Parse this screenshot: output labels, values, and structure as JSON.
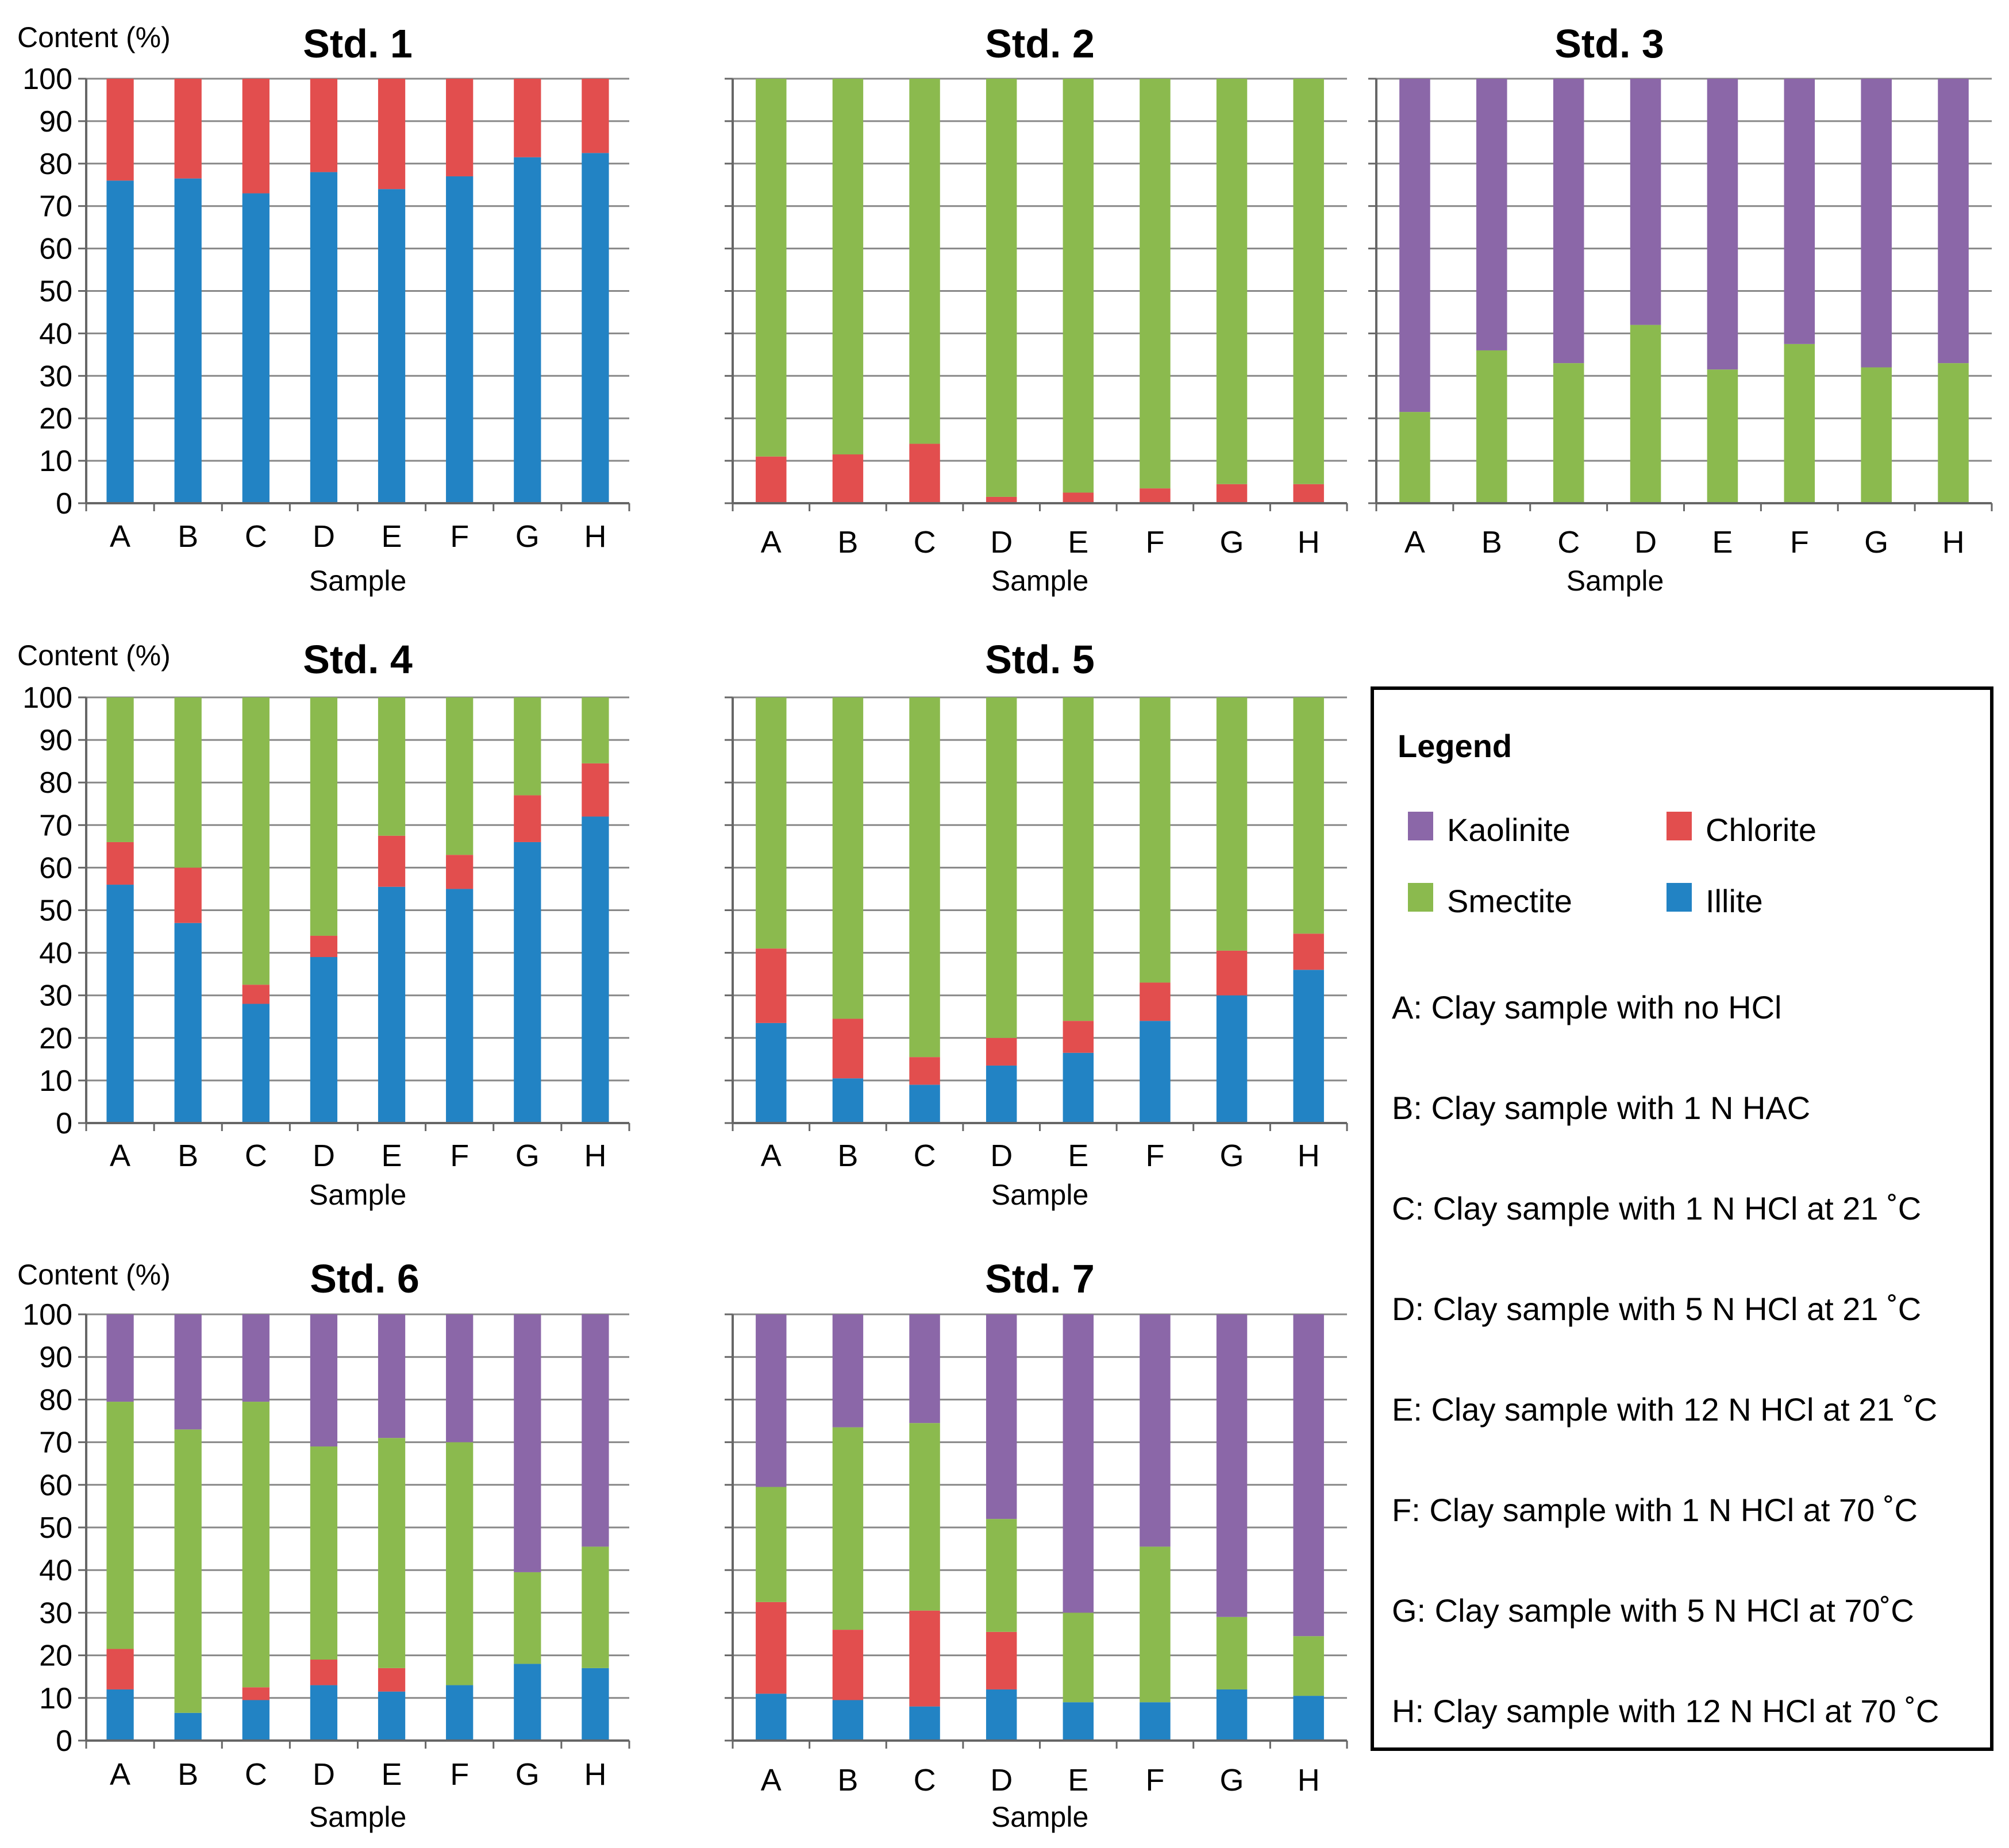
{
  "figure": {
    "colors": {
      "Kaolinite": "#8b67a8",
      "Chlorite": "#e24e4e",
      "Smectite": "#8bba4e",
      "Illite": "#2283c4",
      "grid": "#888888",
      "axis": "#666666"
    }
  },
  "chart_data": [
    {
      "type": "bar",
      "stacked": true,
      "title": "Std. 1",
      "xlabel": "Sample",
      "ylabel": "Content (%)",
      "ylim": [
        0,
        100
      ],
      "yticks": [
        "0",
        "10",
        "20",
        "30",
        "40",
        "50",
        "60",
        "70",
        "80",
        "90",
        "100"
      ],
      "categories": [
        "A",
        "B",
        "C",
        "D",
        "E",
        "F",
        "G",
        "H"
      ],
      "series": [
        {
          "name": "Illite",
          "values": [
            76,
            76.5,
            73,
            78,
            74,
            77,
            81.5,
            82.5
          ]
        },
        {
          "name": "Chlorite",
          "values": [
            24,
            23.5,
            27,
            22,
            26,
            23,
            18.5,
            17.5
          ]
        }
      ]
    },
    {
      "type": "bar",
      "stacked": true,
      "title": "Std. 2",
      "xlabel": "Sample",
      "categories": [
        "A",
        "B",
        "C",
        "D",
        "E",
        "F",
        "G",
        "H"
      ],
      "ylim": [
        0,
        100
      ],
      "series": [
        {
          "name": "Chlorite",
          "values": [
            11,
            11.5,
            14,
            1.5,
            2.5,
            3.5,
            4.5,
            4.5
          ]
        },
        {
          "name": "Smectite",
          "values": [
            89,
            88.5,
            86,
            98.5,
            97.5,
            96.5,
            95.5,
            95.5
          ]
        }
      ]
    },
    {
      "type": "bar",
      "stacked": true,
      "title": "Std. 3",
      "xlabel": "Sample",
      "categories": [
        "A",
        "B",
        "C",
        "D",
        "E",
        "F",
        "G",
        "H"
      ],
      "ylim": [
        0,
        100
      ],
      "series": [
        {
          "name": "Smectite",
          "values": [
            21.5,
            36,
            33,
            42,
            31.5,
            37.5,
            32,
            33
          ]
        },
        {
          "name": "Kaolinite",
          "values": [
            78.5,
            64,
            67,
            58,
            68.5,
            62.5,
            68,
            67
          ]
        }
      ]
    },
    {
      "type": "bar",
      "stacked": true,
      "title": "Std. 4",
      "xlabel": "Sample",
      "ylabel": "Content (%)",
      "ylim": [
        0,
        100
      ],
      "yticks": [
        "0",
        "10",
        "20",
        "30",
        "40",
        "50",
        "60",
        "70",
        "80",
        "90",
        "100"
      ],
      "categories": [
        "A",
        "B",
        "C",
        "D",
        "E",
        "F",
        "G",
        "H"
      ],
      "series": [
        {
          "name": "Illite",
          "values": [
            56,
            47,
            28,
            39,
            55.5,
            55,
            66,
            72
          ]
        },
        {
          "name": "Chlorite",
          "values": [
            10,
            13,
            4.5,
            5,
            12,
            8,
            11,
            12.5
          ]
        },
        {
          "name": "Smectite",
          "values": [
            34,
            40,
            67.5,
            56,
            32.5,
            37,
            23,
            15.5
          ]
        }
      ]
    },
    {
      "type": "bar",
      "stacked": true,
      "title": "Std. 5",
      "xlabel": "Sample",
      "categories": [
        "A",
        "B",
        "C",
        "D",
        "E",
        "F",
        "G",
        "H"
      ],
      "ylim": [
        0,
        100
      ],
      "series": [
        {
          "name": "Illite",
          "values": [
            23.5,
            10.5,
            9,
            13.5,
            16.5,
            24,
            30,
            36
          ]
        },
        {
          "name": "Chlorite",
          "values": [
            17.5,
            14,
            6.5,
            6.5,
            7.5,
            9,
            10.5,
            8.5
          ]
        },
        {
          "name": "Smectite",
          "values": [
            59,
            75.5,
            84.5,
            80,
            76,
            67,
            59.5,
            55.5
          ]
        }
      ]
    },
    {
      "type": "bar",
      "stacked": true,
      "title": "Std. 6",
      "xlabel": "Sample",
      "ylabel": "Content (%)",
      "ylim": [
        0,
        100
      ],
      "yticks": [
        "0",
        "10",
        "20",
        "30",
        "40",
        "50",
        "60",
        "70",
        "80",
        "90",
        "100"
      ],
      "categories": [
        "A",
        "B",
        "C",
        "D",
        "E",
        "F",
        "G",
        "H"
      ],
      "series": [
        {
          "name": "Illite",
          "values": [
            12,
            6.5,
            9.5,
            13,
            11.5,
            13,
            18,
            17
          ]
        },
        {
          "name": "Chlorite",
          "values": [
            9.5,
            0,
            3,
            6,
            5.5,
            0,
            0,
            0
          ]
        },
        {
          "name": "Smectite",
          "values": [
            58,
            66.5,
            67,
            50,
            54,
            57,
            21.5,
            28.5
          ]
        },
        {
          "name": "Kaolinite",
          "values": [
            20.5,
            27,
            20.5,
            31,
            29,
            30,
            60.5,
            54.5
          ]
        }
      ]
    },
    {
      "type": "bar",
      "stacked": true,
      "title": "Std. 7",
      "xlabel": "Sample",
      "categories": [
        "A",
        "B",
        "C",
        "D",
        "E",
        "F",
        "G",
        "H"
      ],
      "ylim": [
        0,
        100
      ],
      "series": [
        {
          "name": "Illite",
          "values": [
            11,
            9.5,
            8,
            12,
            9,
            9,
            12,
            10.5
          ]
        },
        {
          "name": "Chlorite",
          "values": [
            21.5,
            16.5,
            22.5,
            13.5,
            0,
            0,
            0,
            0
          ]
        },
        {
          "name": "Smectite",
          "values": [
            27,
            47.5,
            44,
            26.5,
            21,
            36.5,
            17,
            14
          ]
        },
        {
          "name": "Kaolinite",
          "values": [
            40.5,
            26.5,
            25.5,
            48,
            70,
            54.5,
            71,
            75.5
          ]
        }
      ]
    }
  ],
  "legend": {
    "title": "Legend",
    "items": [
      {
        "name": "Kaolinite",
        "label": "Kaolinite"
      },
      {
        "name": "Chlorite",
        "label": "Chlorite"
      },
      {
        "name": "Smectite",
        "label": "Smectite"
      },
      {
        "name": "Illite",
        "label": "Illite"
      }
    ],
    "notes": [
      "A: Clay sample with no HCl",
      "B: Clay sample with 1 N HAC",
      "C: Clay sample with 1 N HCl at 21 ˚C",
      "D: Clay sample with 5 N HCl at 21 ˚C",
      "E: Clay sample with 12 N HCl at 21 ˚C",
      "F: Clay sample with 1 N HCl at 70 ˚C",
      "G: Clay sample with 5 N HCl at 70˚C",
      "H: Clay sample with 12 N HCl at 70 ˚C"
    ]
  }
}
